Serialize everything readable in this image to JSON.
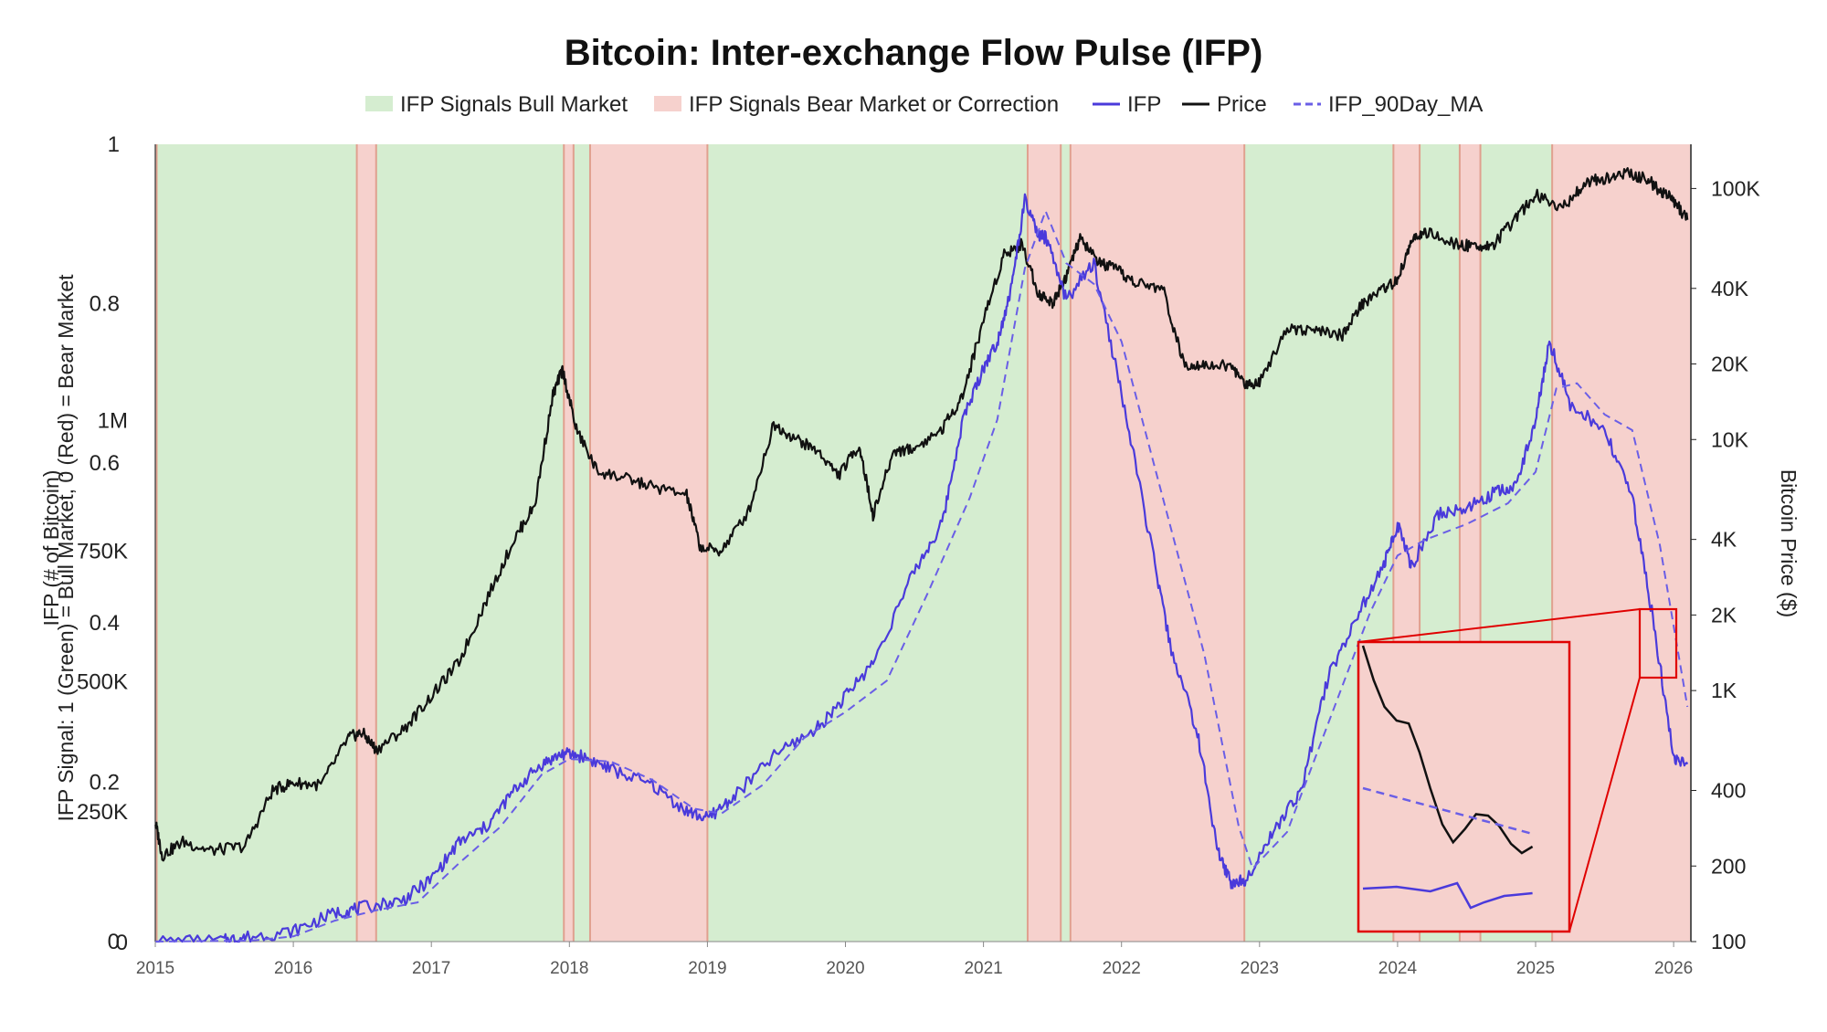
{
  "chart_data": {
    "type": "line",
    "title": "Bitcoin: Inter-exchange Flow Pulse (IFP)",
    "y_left_signal_label": "IFP Signal: 1 (Green) = Bull Market, 0 (Red) = Bear Market",
    "y_left_ifp_label": "IFP (# of Bitcoin)",
    "y_right_label": "Bitcoin Price ($)",
    "legend": {
      "position": "top-center",
      "items": [
        {
          "label": "IFP Signals Bull Market",
          "kind": "area",
          "color": "#d5edd0"
        },
        {
          "label": "IFP Signals Bear Market or Correction",
          "kind": "area",
          "color": "#f6d1cd"
        },
        {
          "label": "IFP",
          "kind": "line",
          "color": "#4a3adb"
        },
        {
          "label": "Price",
          "kind": "line",
          "color": "#111111"
        },
        {
          "label": "IFP_90Day_MA",
          "kind": "dash",
          "color": "#6a5ee6"
        }
      ]
    },
    "x_ticks": [
      "2015",
      "2016",
      "2017",
      "2018",
      "2019",
      "2020",
      "2021",
      "2022",
      "2023",
      "2024",
      "2025",
      "2026"
    ],
    "x_range": [
      "2015-01-01",
      "2026-02-15"
    ],
    "signal_ticks": [
      "0",
      "0.2",
      "0.4",
      "0.6",
      "0.8",
      "1"
    ],
    "ifp_ticks": [
      "0",
      "250K",
      "500K",
      "750K",
      "1M"
    ],
    "ifp_range": [
      0,
      1100000
    ],
    "price_ticks": [
      "100",
      "200",
      "400",
      "1K",
      "2K",
      "4K",
      "10K",
      "20K",
      "40K",
      "100K"
    ],
    "price_scale": "log",
    "price_range": [
      100,
      150000
    ],
    "regimes": [
      {
        "signal": 1,
        "start": "2015.01",
        "end": "2016.46"
      },
      {
        "signal": 0,
        "start": "2016.46",
        "end": "2016.60"
      },
      {
        "signal": 1,
        "start": "2016.60",
        "end": "2017.96"
      },
      {
        "signal": 0,
        "start": "2017.96",
        "end": "2018.03"
      },
      {
        "signal": 1,
        "start": "2018.03",
        "end": "2018.15"
      },
      {
        "signal": 0,
        "start": "2018.15",
        "end": "2019.00"
      },
      {
        "signal": 1,
        "start": "2019.00",
        "end": "2021.32"
      },
      {
        "signal": 0,
        "start": "2021.32",
        "end": "2021.56"
      },
      {
        "signal": 1,
        "start": "2021.56",
        "end": "2021.63"
      },
      {
        "signal": 0,
        "start": "2021.63",
        "end": "2022.89"
      },
      {
        "signal": 1,
        "start": "2022.89",
        "end": "2023.97"
      },
      {
        "signal": 0,
        "start": "2023.97",
        "end": "2024.16"
      },
      {
        "signal": 1,
        "start": "2024.16",
        "end": "2024.45"
      },
      {
        "signal": 0,
        "start": "2024.45",
        "end": "2024.60"
      },
      {
        "signal": 1,
        "start": "2024.60",
        "end": "2025.12"
      },
      {
        "signal": 0,
        "start": "2025.12",
        "end": "2026.12"
      }
    ],
    "series": [
      {
        "name": "Price",
        "axis": "right",
        "x": [
          2015.0,
          2015.05,
          2015.2,
          2015.4,
          2015.65,
          2015.85,
          2016.0,
          2016.2,
          2016.4,
          2016.5,
          2016.6,
          2016.8,
          2017.0,
          2017.2,
          2017.4,
          2017.6,
          2017.75,
          2017.88,
          2017.95,
          2018.05,
          2018.2,
          2018.4,
          2018.6,
          2018.85,
          2018.95,
          2019.1,
          2019.3,
          2019.48,
          2019.65,
          2019.8,
          2019.95,
          2020.1,
          2020.2,
          2020.35,
          2020.5,
          2020.7,
          2020.85,
          2021.0,
          2021.15,
          2021.28,
          2021.4,
          2021.5,
          2021.6,
          2021.7,
          2021.85,
          2021.95,
          2022.1,
          2022.3,
          2022.45,
          2022.6,
          2022.8,
          2022.9,
          2023.0,
          2023.2,
          2023.4,
          2023.6,
          2023.75,
          2023.9,
          2024.0,
          2024.1,
          2024.2,
          2024.4,
          2024.55,
          2024.7,
          2024.85,
          2025.0,
          2025.2,
          2025.35,
          2025.5,
          2025.65,
          2025.8,
          2025.9,
          2026.0,
          2026.1
        ],
        "values": [
          300,
          220,
          250,
          230,
          240,
          400,
          430,
          420,
          650,
          680,
          580,
          700,
          950,
          1300,
          2300,
          4000,
          5500,
          15000,
          19000,
          11000,
          7500,
          7000,
          6500,
          6000,
          3700,
          3600,
          5200,
          11500,
          10000,
          9000,
          7200,
          9500,
          5000,
          9000,
          9200,
          11000,
          15000,
          30000,
          55000,
          60000,
          38000,
          35000,
          45000,
          63000,
          50000,
          48000,
          42000,
          40000,
          20000,
          20000,
          19500,
          16500,
          17000,
          28000,
          27000,
          26000,
          35000,
          40000,
          43000,
          62000,
          67000,
          60000,
          59000,
          60000,
          75000,
          95000,
          84000,
          105000,
          110000,
          115000,
          110000,
          98000,
          90000,
          75000
        ]
      },
      {
        "name": "IFP",
        "axis": "left",
        "x": [
          2015.0,
          2015.5,
          2015.65,
          2016.0,
          2016.3,
          2016.5,
          2016.8,
          2017.0,
          2017.2,
          2017.4,
          2017.6,
          2017.8,
          2017.95,
          2018.1,
          2018.3,
          2018.6,
          2018.85,
          2019.0,
          2019.2,
          2019.5,
          2019.8,
          2020.0,
          2020.2,
          2020.5,
          2020.7,
          2020.85,
          2021.0,
          2021.1,
          2021.2,
          2021.3,
          2021.4,
          2021.45,
          2021.6,
          2021.8,
          2022.0,
          2022.2,
          2022.35,
          2022.55,
          2022.7,
          2022.8,
          2022.9,
          2023.1,
          2023.3,
          2023.5,
          2023.7,
          2023.9,
          2024.0,
          2024.1,
          2024.3,
          2024.5,
          2024.7,
          2024.85,
          2025.0,
          2025.1,
          2025.25,
          2025.5,
          2025.7,
          2025.85,
          2026.0,
          2026.1
        ],
        "values": [
          0,
          2000,
          8000,
          20000,
          55000,
          65000,
          80000,
          120000,
          190000,
          220000,
          290000,
          340000,
          360000,
          355000,
          330000,
          300000,
          250000,
          235000,
          280000,
          360000,
          410000,
          470000,
          535000,
          710000,
          800000,
          1000000,
          1100000,
          1150000,
          1250000,
          1420000,
          1350000,
          1350000,
          1230000,
          1300000,
          1050000,
          780000,
          570000,
          400000,
          170000,
          110000,
          120000,
          210000,
          290000,
          510000,
          620000,
          720000,
          800000,
          720000,
          820000,
          830000,
          860000,
          870000,
          1000000,
          1150000,
          1030000,
          980000,
          850000,
          620000,
          350000,
          340000
        ]
      },
      {
        "name": "IFP_90Day_MA",
        "axis": "left",
        "x": [
          2015.0,
          2015.7,
          2016.0,
          2016.3,
          2016.6,
          2016.9,
          2017.2,
          2017.5,
          2017.8,
          2018.0,
          2018.3,
          2018.6,
          2018.9,
          2019.1,
          2019.4,
          2019.7,
          2020.0,
          2020.3,
          2020.6,
          2020.9,
          2021.1,
          2021.3,
          2021.45,
          2021.6,
          2021.8,
          2022.0,
          2022.3,
          2022.6,
          2022.85,
          2022.95,
          2023.2,
          2023.5,
          2023.8,
          2024.0,
          2024.2,
          2024.5,
          2024.8,
          2025.0,
          2025.15,
          2025.3,
          2025.5,
          2025.7,
          2025.9,
          2026.1
        ],
        "values": [
          0,
          2000,
          10000,
          40000,
          60000,
          75000,
          150000,
          220000,
          320000,
          350000,
          345000,
          310000,
          255000,
          245000,
          300000,
          390000,
          440000,
          500000,
          670000,
          850000,
          1000000,
          1290000,
          1400000,
          1300000,
          1260000,
          1150000,
          850000,
          550000,
          220000,
          140000,
          210000,
          420000,
          630000,
          740000,
          770000,
          800000,
          840000,
          900000,
          1060000,
          1070000,
          1010000,
          980000,
          760000,
          450000
        ]
      }
    ],
    "inset": {
      "x_range": [
        2025.95,
        2026.1
      ],
      "price_points": [
        [
          2025.95,
          80800
        ],
        [
          2025.958,
          76000
        ],
        [
          2025.966,
          72300
        ],
        [
          2025.975,
          70400
        ],
        [
          2025.984,
          70000
        ],
        [
          2025.992,
          66000
        ],
        [
          2026.0,
          61000
        ],
        [
          2026.009,
          56000
        ],
        [
          2026.017,
          53500
        ],
        [
          2026.026,
          55400
        ],
        [
          2026.034,
          57400
        ],
        [
          2026.043,
          57200
        ],
        [
          2026.051,
          55800
        ],
        [
          2026.06,
          53300
        ],
        [
          2026.068,
          52000
        ],
        [
          2026.076,
          52900
        ]
      ],
      "ma_points": [
        [
          2025.95,
          380000
        ],
        [
          2026.076,
          370000
        ]
      ],
      "ifp_points": [
        [
          2025.95,
          355000
        ],
        [
          2025.975,
          355200
        ],
        [
          2026.0,
          354700
        ],
        [
          2026.02,
          355600
        ],
        [
          2026.03,
          352900
        ],
        [
          2026.04,
          353500
        ],
        [
          2026.055,
          354200
        ],
        [
          2026.076,
          354500
        ]
      ]
    }
  }
}
